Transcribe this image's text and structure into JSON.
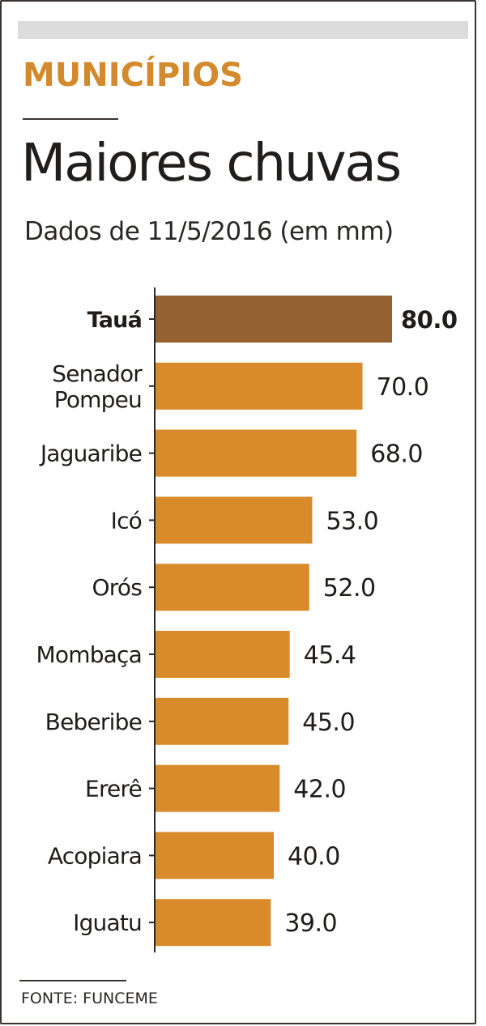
{
  "kicker": "MUNICÍPIOS",
  "source": "FONTE: FUNCEME",
  "colors": {
    "bar": "#d98b2b",
    "highlight_bar": "#946231",
    "axis": "#2b2724",
    "text": "#1f1c1a"
  },
  "chart_data": {
    "type": "bar",
    "orientation": "horizontal",
    "title": "Maiores chuvas",
    "subtitle": "Dados de 11/5/2016 (em mm)",
    "categories": [
      "Tauá",
      "Senador Pompeu",
      "Jaguaribe",
      "Icó",
      "Orós",
      "Mombaça",
      "Beberibe",
      "Ererê",
      "Acopiara",
      "Iguatu"
    ],
    "values": [
      80.0,
      70.0,
      68.0,
      53.0,
      52.0,
      45.4,
      45.0,
      42.0,
      40.0,
      39.0
    ],
    "value_labels": [
      "80.0",
      "70.0",
      "68.0",
      "53.0",
      "52.0",
      "45.4",
      "45.0",
      "42.0",
      "40.0",
      "39.0"
    ],
    "highlight": "Tauá",
    "xlim": [
      0,
      80
    ],
    "grid": false,
    "legend": "none"
  }
}
